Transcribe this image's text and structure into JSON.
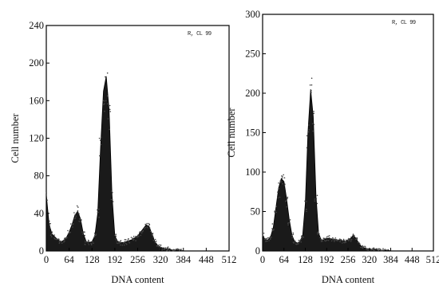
{
  "chart_data": [
    {
      "type": "area",
      "title": "",
      "xlabel": "DNA content",
      "ylabel": "Cell number",
      "xlim": [
        0,
        512
      ],
      "ylim": [
        0,
        240
      ],
      "x_ticks": [
        0,
        64,
        128,
        192,
        256,
        320,
        384,
        448,
        512
      ],
      "y_ticks": [
        0,
        40,
        80,
        120,
        160,
        200,
        240
      ],
      "corner_tag": "R, CL 99",
      "grid": false,
      "legend": "none",
      "series": [
        {
          "x": [
            0,
            8,
            16,
            24,
            32,
            40,
            48,
            56,
            64,
            72,
            80,
            88,
            96,
            104,
            112,
            120,
            128,
            136,
            144,
            152,
            160,
            168,
            176,
            184,
            192,
            200,
            208,
            216,
            224,
            232,
            240,
            248,
            256,
            264,
            272,
            280,
            288,
            296,
            304,
            312,
            320,
            328,
            336,
            344,
            352,
            360,
            368,
            376,
            384,
            392,
            400,
            408,
            416,
            424,
            432,
            440,
            448,
            456,
            464,
            472,
            480,
            488,
            496,
            504,
            512
          ],
          "y": [
            60,
            28,
            18,
            15,
            12,
            10,
            11,
            14,
            20,
            28,
            38,
            42,
            34,
            18,
            10,
            9,
            10,
            16,
            40,
            110,
            170,
            186,
            150,
            60,
            16,
            10,
            9,
            9,
            10,
            11,
            12,
            14,
            16,
            20,
            24,
            28,
            26,
            18,
            10,
            6,
            4,
            3,
            2,
            2,
            1,
            1,
            1,
            1,
            0,
            0,
            0,
            0,
            0,
            0,
            0,
            0,
            0,
            0,
            0,
            0,
            0,
            0,
            0,
            0,
            0
          ]
        }
      ]
    },
    {
      "type": "area",
      "title": "",
      "xlabel": "DNA content",
      "ylabel": "Cell number",
      "xlim": [
        0,
        512
      ],
      "ylim": [
        0,
        300
      ],
      "x_ticks": [
        0,
        64,
        128,
        192,
        256,
        320,
        384,
        448,
        512
      ],
      "y_ticks": [
        0,
        50,
        100,
        150,
        200,
        250,
        300
      ],
      "corner_tag": "R, CL 99",
      "grid": false,
      "legend": "none",
      "series": [
        {
          "x": [
            0,
            8,
            16,
            24,
            32,
            40,
            48,
            56,
            64,
            72,
            80,
            88,
            96,
            104,
            112,
            120,
            128,
            136,
            144,
            152,
            160,
            168,
            176,
            184,
            192,
            200,
            208,
            216,
            224,
            232,
            240,
            248,
            256,
            264,
            272,
            280,
            288,
            296,
            304,
            312,
            320,
            328,
            336,
            344,
            352,
            360,
            368,
            376,
            384,
            392,
            400,
            408,
            416,
            424,
            432,
            440,
            448,
            456,
            464,
            472,
            480,
            488,
            496,
            504,
            512
          ],
          "y": [
            20,
            14,
            14,
            18,
            30,
            55,
            80,
            92,
            88,
            66,
            40,
            20,
            12,
            10,
            12,
            20,
            60,
            150,
            205,
            170,
            70,
            22,
            14,
            14,
            16,
            16,
            15,
            15,
            14,
            14,
            13,
            12,
            14,
            16,
            20,
            16,
            10,
            6,
            4,
            3,
            2,
            2,
            2,
            1,
            1,
            1,
            1,
            1,
            0,
            0,
            0,
            0,
            0,
            0,
            0,
            0,
            0,
            0,
            0,
            0,
            0,
            0,
            0,
            0,
            0
          ]
        }
      ]
    }
  ]
}
